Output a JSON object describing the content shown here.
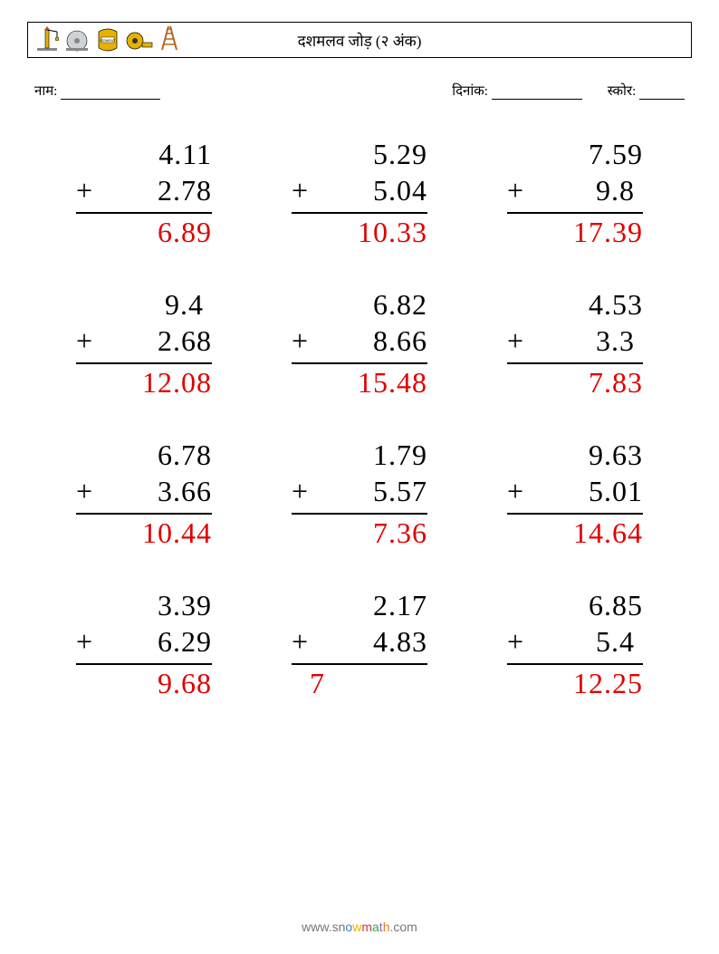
{
  "header": {
    "title": "दशमलव जोड़ (२ अंक)",
    "icons": [
      "crane-icon",
      "sawblade-icon",
      "cement-bag-icon",
      "tape-measure-icon",
      "ladder-icon"
    ]
  },
  "meta": {
    "name_label": "नाम:",
    "date_label": "दिनांक:",
    "score_label": "स्कोर:",
    "name_underline_width": 110,
    "date_underline_width": 100,
    "score_underline_width": 50
  },
  "style": {
    "answer_color": "#e00000",
    "text_color": "#000000",
    "font_size_problem": 32,
    "columns": 3,
    "rows": 4
  },
  "problems": [
    {
      "a": "4.11",
      "b": "2.78",
      "ans": "6.89"
    },
    {
      "a": "5.29",
      "b": "5.04",
      "ans": "10.33"
    },
    {
      "a": "7.59",
      "b": "9.8 ",
      "ans": "17.39"
    },
    {
      "a": "9.4 ",
      "b": "2.68",
      "ans": "12.08"
    },
    {
      "a": "6.82",
      "b": "8.66",
      "ans": "15.48"
    },
    {
      "a": "4.53",
      "b": "3.3 ",
      "ans": "7.83"
    },
    {
      "a": "6.78",
      "b": "3.66",
      "ans": "10.44"
    },
    {
      "a": "1.79",
      "b": "5.57",
      "ans": "7.36"
    },
    {
      "a": "9.63",
      "b": "5.01",
      "ans": "14.64"
    },
    {
      "a": "3.39",
      "b": "6.29",
      "ans": "9.68"
    },
    {
      "a": "2.17",
      "b": "4.83",
      "ans": "7",
      "ans_align": "left"
    },
    {
      "a": "6.85",
      "b": "5.4 ",
      "ans": "12.25"
    }
  ],
  "operator": "+",
  "footer": {
    "prefix": "www.sn",
    "o": "o",
    "w": "w",
    "m": "m",
    "a": "a",
    "t": "t",
    "h": "h",
    "suffix": ".com"
  }
}
